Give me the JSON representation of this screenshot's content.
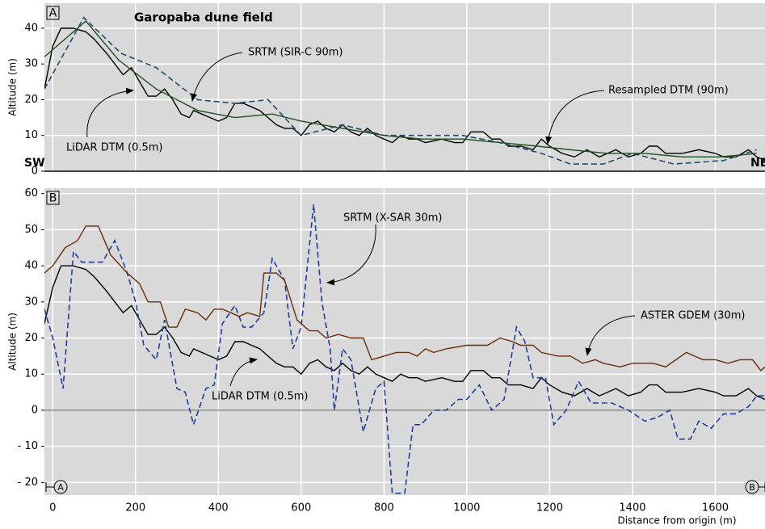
{
  "chart_data": [
    {
      "type": "line",
      "panel": "A",
      "title": "Garopaba dune field",
      "ylabel": "Altitude (m)",
      "xlim": [
        -20,
        1720
      ],
      "xticks": [
        0,
        200,
        400,
        600,
        800,
        1000,
        1200,
        1400,
        1600
      ],
      "ylim": [
        0,
        47
      ],
      "yticks": [
        0,
        10,
        20,
        30,
        40
      ],
      "grid": true,
      "annotations": [
        "SW",
        "NE"
      ],
      "series": [
        {
          "name": "LiDAR DTM (0.5m)",
          "color": "#000000",
          "dash": false,
          "x": [
            -20,
            0,
            20,
            50,
            80,
            100,
            130,
            150,
            170,
            190,
            210,
            230,
            250,
            270,
            290,
            310,
            330,
            340,
            360,
            380,
            400,
            420,
            440,
            460,
            480,
            500,
            520,
            540,
            560,
            580,
            600,
            620,
            640,
            660,
            680,
            700,
            720,
            740,
            760,
            780,
            800,
            820,
            840,
            860,
            880,
            900,
            940,
            970,
            990,
            1010,
            1040,
            1060,
            1080,
            1100,
            1130,
            1160,
            1180,
            1200,
            1230,
            1260,
            1290,
            1320,
            1360,
            1390,
            1420,
            1440,
            1460,
            1480,
            1520,
            1560,
            1600,
            1620,
            1650,
            1680,
            1700,
            1720
          ],
          "values": [
            23,
            35,
            40,
            40,
            39,
            37,
            33,
            30,
            27,
            29,
            25,
            21,
            21,
            23,
            20,
            16,
            15,
            17,
            16,
            15,
            14,
            15,
            19,
            19,
            18,
            17,
            15,
            13,
            12,
            12,
            10,
            13,
            14,
            12,
            11,
            13,
            11,
            10,
            12,
            10,
            9,
            8,
            10,
            9,
            9,
            8,
            9,
            8,
            8,
            11,
            11,
            9,
            9,
            7,
            7,
            6,
            9,
            7,
            5,
            4,
            6,
            4,
            6,
            4,
            5,
            7,
            7,
            5,
            5,
            6,
            5,
            4,
            4,
            6,
            4,
            3
          ]
        },
        {
          "name": "SRTM (SIR-C 90m)",
          "color": "#1f4e6b",
          "dash": true,
          "x": [
            -20,
            75,
            165,
            250,
            350,
            440,
            520,
            600,
            700,
            800,
            900,
            990,
            1080,
            1180,
            1250,
            1330,
            1400,
            1500,
            1620,
            1700
          ],
          "values": [
            23,
            43,
            33,
            29,
            20,
            19,
            20,
            10,
            13,
            10,
            10,
            10,
            8,
            5,
            2,
            2,
            5,
            2,
            3,
            6
          ]
        },
        {
          "name": "Resampled DTM (90m)",
          "color": "#1e4d1e",
          "dash": false,
          "x": [
            -20,
            80,
            160,
            250,
            350,
            440,
            530,
            600,
            700,
            800,
            890,
            990,
            1080,
            1170,
            1250,
            1340,
            1430,
            1520,
            1610,
            1700
          ],
          "values": [
            32,
            42,
            31,
            23,
            17,
            15,
            16,
            14,
            12,
            10,
            9,
            9,
            8,
            7,
            6,
            5,
            5,
            4,
            4,
            5
          ]
        }
      ]
    },
    {
      "type": "line",
      "panel": "B",
      "ylabel": "Altitude (m)",
      "xlabel": "Distance from origin (m)",
      "xlim": [
        -20,
        1720
      ],
      "xticks": [
        0,
        200,
        400,
        600,
        800,
        1000,
        1200,
        1400,
        1600
      ],
      "ylim": [
        -23.5,
        61.5
      ],
      "yticks": [
        {
          "value": -20,
          "label": "- 20"
        },
        {
          "value": -10,
          "label": "- 10"
        },
        0,
        10,
        20,
        30,
        40,
        50,
        60
      ],
      "grid": true,
      "annotations": [
        "A",
        "B"
      ],
      "series": [
        {
          "name": "LiDAR DTM (0.5m)",
          "color": "#000000",
          "dash": false,
          "x": [
            -20,
            0,
            20,
            50,
            80,
            100,
            130,
            150,
            170,
            190,
            210,
            230,
            250,
            270,
            290,
            310,
            330,
            340,
            360,
            380,
            400,
            420,
            440,
            460,
            480,
            500,
            520,
            540,
            560,
            580,
            600,
            620,
            640,
            660,
            680,
            700,
            720,
            740,
            760,
            780,
            800,
            820,
            840,
            860,
            880,
            900,
            940,
            970,
            990,
            1010,
            1040,
            1060,
            1080,
            1100,
            1130,
            1160,
            1180,
            1200,
            1230,
            1260,
            1290,
            1320,
            1360,
            1390,
            1420,
            1440,
            1460,
            1480,
            1520,
            1560,
            1600,
            1620,
            1650,
            1680,
            1700,
            1720
          ],
          "values": [
            24,
            34,
            40,
            40,
            39,
            37,
            33,
            30,
            27,
            29,
            25,
            21,
            21,
            23,
            20,
            16,
            15,
            17,
            16,
            15,
            14,
            15,
            19,
            19,
            18,
            17,
            15,
            13,
            12,
            12,
            10,
            13,
            14,
            12,
            11,
            13,
            11,
            10,
            12,
            10,
            9,
            8,
            10,
            9,
            9,
            8,
            9,
            8,
            8,
            11,
            11,
            9,
            9,
            7,
            7,
            6,
            9,
            7,
            5,
            4,
            6,
            4,
            6,
            4,
            5,
            7,
            7,
            5,
            5,
            6,
            5,
            4,
            4,
            6,
            4,
            3
          ]
        },
        {
          "name": "SRTM (X-SAR 30m)",
          "color": "#1f3f9f",
          "dash": true,
          "x": [
            -20,
            0,
            25,
            50,
            70,
            120,
            150,
            180,
            200,
            220,
            250,
            270,
            300,
            320,
            340,
            370,
            390,
            410,
            440,
            460,
            480,
            510,
            530,
            560,
            580,
            600,
            630,
            650,
            670,
            680,
            700,
            720,
            750,
            780,
            800,
            820,
            850,
            870,
            890,
            920,
            950,
            980,
            1000,
            1030,
            1060,
            1090,
            1120,
            1140,
            1160,
            1190,
            1210,
            1240,
            1270,
            1300,
            1350,
            1390,
            1430,
            1460,
            1490,
            1510,
            1540,
            1560,
            1590,
            1620,
            1650,
            1680,
            1700,
            1720
          ],
          "values": [
            28,
            20,
            6,
            44,
            41,
            41,
            47,
            38,
            30,
            18,
            14,
            25,
            6,
            5,
            -4,
            6,
            7,
            24,
            29,
            23,
            23,
            27,
            42,
            36,
            17,
            23,
            57,
            30,
            17,
            0,
            17,
            14,
            -6,
            6,
            8,
            -23,
            -23,
            -4,
            -4,
            0,
            0,
            3,
            3,
            7,
            0,
            3,
            23,
            19,
            9,
            9,
            -4,
            0,
            8,
            2,
            2,
            0,
            -3,
            -2,
            0,
            -8,
            -8,
            -3,
            -5,
            -1,
            -1,
            1,
            4,
            4
          ]
        },
        {
          "name": "ASTER GDEM (30m)",
          "color": "#6b2d0b",
          "dash": false,
          "x": [
            -20,
            0,
            30,
            60,
            80,
            110,
            140,
            180,
            200,
            210,
            230,
            260,
            280,
            300,
            320,
            350,
            370,
            390,
            410,
            430,
            450,
            470,
            500,
            510,
            540,
            560,
            590,
            620,
            640,
            660,
            690,
            720,
            750,
            770,
            800,
            830,
            860,
            880,
            900,
            920,
            950,
            1000,
            1050,
            1080,
            1110,
            1130,
            1160,
            1180,
            1220,
            1250,
            1280,
            1310,
            1330,
            1370,
            1400,
            1450,
            1480,
            1530,
            1570,
            1600,
            1630,
            1660,
            1690,
            1710,
            1720
          ],
          "values": [
            38,
            40,
            45,
            47,
            51,
            51,
            43,
            38,
            36,
            35,
            30,
            30,
            23,
            23,
            28,
            27,
            25,
            28,
            28,
            27,
            26,
            27,
            26,
            38,
            38,
            36,
            25,
            22,
            22,
            20,
            21,
            20,
            20,
            14,
            15,
            16,
            16,
            15,
            17,
            16,
            17,
            18,
            18,
            20,
            19,
            18,
            18,
            16,
            15,
            15,
            13,
            14,
            13,
            12,
            13,
            13,
            12,
            16,
            14,
            14,
            13,
            14,
            14,
            11,
            12
          ]
        }
      ]
    }
  ]
}
